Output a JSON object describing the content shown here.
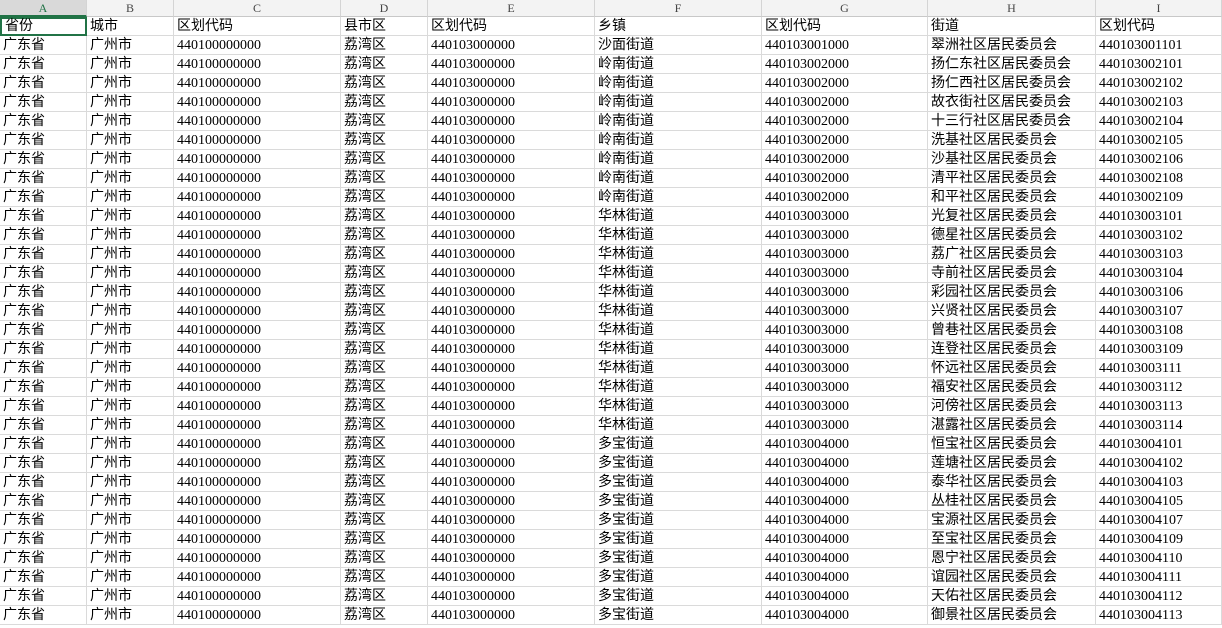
{
  "sheet": {
    "columns": [
      "A",
      "B",
      "C",
      "D",
      "E",
      "F",
      "G",
      "H",
      "I"
    ],
    "rows": [
      [
        "省份",
        "城市",
        "区划代码",
        "县市区",
        "区划代码",
        "乡镇",
        "区划代码",
        "街道",
        "区划代码"
      ],
      [
        "广东省",
        "广州市",
        "440100000000",
        "荔湾区",
        "440103000000",
        "沙面街道",
        "440103001000",
        "翠洲社区居民委员会",
        "440103001101"
      ],
      [
        "广东省",
        "广州市",
        "440100000000",
        "荔湾区",
        "440103000000",
        "岭南街道",
        "440103002000",
        "扬仁东社区居民委员会",
        "440103002101"
      ],
      [
        "广东省",
        "广州市",
        "440100000000",
        "荔湾区",
        "440103000000",
        "岭南街道",
        "440103002000",
        "扬仁西社区居民委员会",
        "440103002102"
      ],
      [
        "广东省",
        "广州市",
        "440100000000",
        "荔湾区",
        "440103000000",
        "岭南街道",
        "440103002000",
        "故衣街社区居民委员会",
        "440103002103"
      ],
      [
        "广东省",
        "广州市",
        "440100000000",
        "荔湾区",
        "440103000000",
        "岭南街道",
        "440103002000",
        "十三行社区居民委员会",
        "440103002104"
      ],
      [
        "广东省",
        "广州市",
        "440100000000",
        "荔湾区",
        "440103000000",
        "岭南街道",
        "440103002000",
        "洗基社区居民委员会",
        "440103002105"
      ],
      [
        "广东省",
        "广州市",
        "440100000000",
        "荔湾区",
        "440103000000",
        "岭南街道",
        "440103002000",
        "沙基社区居民委员会",
        "440103002106"
      ],
      [
        "广东省",
        "广州市",
        "440100000000",
        "荔湾区",
        "440103000000",
        "岭南街道",
        "440103002000",
        "清平社区居民委员会",
        "440103002108"
      ],
      [
        "广东省",
        "广州市",
        "440100000000",
        "荔湾区",
        "440103000000",
        "岭南街道",
        "440103002000",
        "和平社区居民委员会",
        "440103002109"
      ],
      [
        "广东省",
        "广州市",
        "440100000000",
        "荔湾区",
        "440103000000",
        "华林街道",
        "440103003000",
        "光复社区居民委员会",
        "440103003101"
      ],
      [
        "广东省",
        "广州市",
        "440100000000",
        "荔湾区",
        "440103000000",
        "华林街道",
        "440103003000",
        "德星社区居民委员会",
        "440103003102"
      ],
      [
        "广东省",
        "广州市",
        "440100000000",
        "荔湾区",
        "440103000000",
        "华林街道",
        "440103003000",
        "荔广社区居民委员会",
        "440103003103"
      ],
      [
        "广东省",
        "广州市",
        "440100000000",
        "荔湾区",
        "440103000000",
        "华林街道",
        "440103003000",
        "寺前社区居民委员会",
        "440103003104"
      ],
      [
        "广东省",
        "广州市",
        "440100000000",
        "荔湾区",
        "440103000000",
        "华林街道",
        "440103003000",
        "彩园社区居民委员会",
        "440103003106"
      ],
      [
        "广东省",
        "广州市",
        "440100000000",
        "荔湾区",
        "440103000000",
        "华林街道",
        "440103003000",
        "兴贤社区居民委员会",
        "440103003107"
      ],
      [
        "广东省",
        "广州市",
        "440100000000",
        "荔湾区",
        "440103000000",
        "华林街道",
        "440103003000",
        "曾巷社区居民委员会",
        "440103003108"
      ],
      [
        "广东省",
        "广州市",
        "440100000000",
        "荔湾区",
        "440103000000",
        "华林街道",
        "440103003000",
        "连登社区居民委员会",
        "440103003109"
      ],
      [
        "广东省",
        "广州市",
        "440100000000",
        "荔湾区",
        "440103000000",
        "华林街道",
        "440103003000",
        "怀远社区居民委员会",
        "440103003111"
      ],
      [
        "广东省",
        "广州市",
        "440100000000",
        "荔湾区",
        "440103000000",
        "华林街道",
        "440103003000",
        "福安社区居民委员会",
        "440103003112"
      ],
      [
        "广东省",
        "广州市",
        "440100000000",
        "荔湾区",
        "440103000000",
        "华林街道",
        "440103003000",
        "河傍社区居民委员会",
        "440103003113"
      ],
      [
        "广东省",
        "广州市",
        "440100000000",
        "荔湾区",
        "440103000000",
        "华林街道",
        "440103003000",
        "湛露社区居民委员会",
        "440103003114"
      ],
      [
        "广东省",
        "广州市",
        "440100000000",
        "荔湾区",
        "440103000000",
        "多宝街道",
        "440103004000",
        "恒宝社区居民委员会",
        "440103004101"
      ],
      [
        "广东省",
        "广州市",
        "440100000000",
        "荔湾区",
        "440103000000",
        "多宝街道",
        "440103004000",
        "莲塘社区居民委员会",
        "440103004102"
      ],
      [
        "广东省",
        "广州市",
        "440100000000",
        "荔湾区",
        "440103000000",
        "多宝街道",
        "440103004000",
        "泰华社区居民委员会",
        "440103004103"
      ],
      [
        "广东省",
        "广州市",
        "440100000000",
        "荔湾区",
        "440103000000",
        "多宝街道",
        "440103004000",
        "丛桂社区居民委员会",
        "440103004105"
      ],
      [
        "广东省",
        "广州市",
        "440100000000",
        "荔湾区",
        "440103000000",
        "多宝街道",
        "440103004000",
        "宝源社区居民委员会",
        "440103004107"
      ],
      [
        "广东省",
        "广州市",
        "440100000000",
        "荔湾区",
        "440103000000",
        "多宝街道",
        "440103004000",
        "至宝社区居民委员会",
        "440103004109"
      ],
      [
        "广东省",
        "广州市",
        "440100000000",
        "荔湾区",
        "440103000000",
        "多宝街道",
        "440103004000",
        "恩宁社区居民委员会",
        "440103004110"
      ],
      [
        "广东省",
        "广州市",
        "440100000000",
        "荔湾区",
        "440103000000",
        "多宝街道",
        "440103004000",
        "谊园社区居民委员会",
        "440103004111"
      ],
      [
        "广东省",
        "广州市",
        "440100000000",
        "荔湾区",
        "440103000000",
        "多宝街道",
        "440103004000",
        "天佑社区居民委员会",
        "440103004112"
      ],
      [
        "广东省",
        "广州市",
        "440100000000",
        "荔湾区",
        "440103000000",
        "多宝街道",
        "440103004000",
        "御景社区居民委员会",
        "440103004113"
      ]
    ]
  }
}
